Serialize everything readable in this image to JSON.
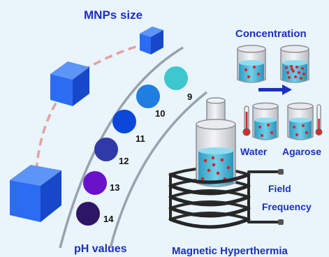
{
  "labels": {
    "mnps_size": "MNPs size",
    "concentration": "Concentration",
    "ph_values": "pH values",
    "water": "Water",
    "agarose": "Agarose",
    "field": "Field",
    "frequency": "Frequency",
    "magnetic_hyperthermia": "Magnetic Hyperthermia"
  },
  "ph_series": [
    {
      "value": "9",
      "color": "#3fc7cf"
    },
    {
      "value": "10",
      "color": "#1f7ee0"
    },
    {
      "value": "11",
      "color": "#0b48d9"
    },
    {
      "value": "12",
      "color": "#2f3aa8"
    },
    {
      "value": "13",
      "color": "#6a12c8"
    },
    {
      "value": "14",
      "color": "#2e1666"
    }
  ],
  "colors": {
    "title_blue": "#1c2fbf",
    "cube_blue": "#1f63ee",
    "liquid": "#43b4d6",
    "particle": "#e02020",
    "dash": "#e3a1a1",
    "arc": "#9aa2ae",
    "coil": "#2b2b2b"
  }
}
